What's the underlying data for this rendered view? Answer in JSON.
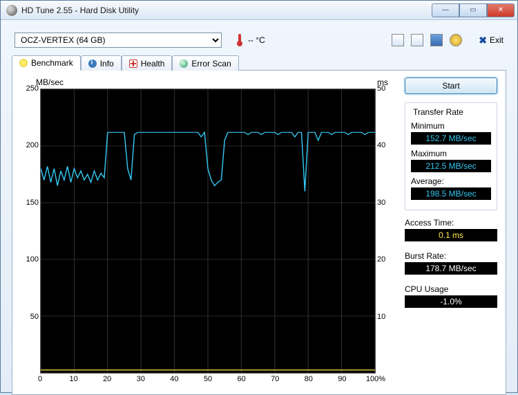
{
  "window": {
    "title": "HD Tune 2.55 - Hard Disk Utility"
  },
  "toolbar": {
    "drive_selected": "OCZ-VERTEX (64 GB)",
    "temperature": "-- °C",
    "exit_label": "Exit"
  },
  "tabs": {
    "benchmark": "Benchmark",
    "info": "Info",
    "health": "Health",
    "error_scan": "Error Scan",
    "active": "benchmark"
  },
  "start_button": "Start",
  "chart": {
    "type": "line",
    "y_left_label": "MB/sec",
    "y_right_label": "ms",
    "y_left": {
      "min": 0,
      "max": 250,
      "ticks": [
        0,
        50,
        100,
        150,
        200,
        250
      ]
    },
    "y_right": {
      "min": 0,
      "max": 50,
      "ticks": [
        0,
        10,
        20,
        30,
        40,
        50
      ]
    },
    "x": {
      "unit": "%",
      "ticks": [
        0,
        10,
        20,
        30,
        40,
        50,
        60,
        70,
        80,
        90,
        100
      ]
    },
    "background_color": "#000000",
    "grid_color": "#353535",
    "transfer_line_color": "#33c7f2",
    "access_line_color": "#ffe94a",
    "transfer_series": [
      [
        0,
        180
      ],
      [
        1,
        170
      ],
      [
        2,
        182
      ],
      [
        3,
        168
      ],
      [
        4,
        180
      ],
      [
        5,
        165
      ],
      [
        6,
        178
      ],
      [
        7,
        170
      ],
      [
        8,
        182
      ],
      [
        9,
        168
      ],
      [
        10,
        180
      ],
      [
        11,
        172
      ],
      [
        12,
        178
      ],
      [
        13,
        170
      ],
      [
        14,
        175
      ],
      [
        15,
        168
      ],
      [
        16,
        178
      ],
      [
        17,
        170
      ],
      [
        18,
        176
      ],
      [
        19,
        172
      ],
      [
        20,
        212
      ],
      [
        21,
        212
      ],
      [
        22,
        212
      ],
      [
        23,
        212
      ],
      [
        24,
        212
      ],
      [
        25,
        212
      ],
      [
        26,
        180
      ],
      [
        27,
        170
      ],
      [
        28,
        210
      ],
      [
        29,
        212
      ],
      [
        30,
        212
      ],
      [
        31,
        212
      ],
      [
        32,
        212
      ],
      [
        33,
        212
      ],
      [
        34,
        212
      ],
      [
        35,
        212
      ],
      [
        36,
        212
      ],
      [
        37,
        212
      ],
      [
        38,
        212
      ],
      [
        39,
        212
      ],
      [
        40,
        212
      ],
      [
        41,
        212
      ],
      [
        42,
        212
      ],
      [
        43,
        212
      ],
      [
        44,
        212
      ],
      [
        45,
        212
      ],
      [
        46,
        212
      ],
      [
        47,
        212
      ],
      [
        48,
        208
      ],
      [
        49,
        212
      ],
      [
        50,
        180
      ],
      [
        51,
        170
      ],
      [
        52,
        165
      ],
      [
        53,
        168
      ],
      [
        54,
        170
      ],
      [
        55,
        205
      ],
      [
        56,
        212
      ],
      [
        57,
        212
      ],
      [
        58,
        212
      ],
      [
        59,
        212
      ],
      [
        60,
        212
      ],
      [
        61,
        212
      ],
      [
        62,
        210
      ],
      [
        63,
        212
      ],
      [
        64,
        212
      ],
      [
        65,
        212
      ],
      [
        66,
        210
      ],
      [
        67,
        212
      ],
      [
        68,
        212
      ],
      [
        69,
        212
      ],
      [
        70,
        212
      ],
      [
        71,
        210
      ],
      [
        72,
        212
      ],
      [
        73,
        212
      ],
      [
        74,
        212
      ],
      [
        75,
        212
      ],
      [
        76,
        208
      ],
      [
        77,
        212
      ],
      [
        78,
        212
      ],
      [
        79,
        160
      ],
      [
        80,
        212
      ],
      [
        81,
        212
      ],
      [
        82,
        212
      ],
      [
        83,
        205
      ],
      [
        84,
        212
      ],
      [
        85,
        212
      ],
      [
        86,
        212
      ],
      [
        87,
        210
      ],
      [
        88,
        212
      ],
      [
        89,
        212
      ],
      [
        90,
        212
      ],
      [
        91,
        212
      ],
      [
        92,
        210
      ],
      [
        93,
        212
      ],
      [
        94,
        212
      ],
      [
        95,
        212
      ],
      [
        96,
        212
      ],
      [
        97,
        210
      ],
      [
        98,
        212
      ],
      [
        99,
        212
      ],
      [
        100,
        212
      ]
    ],
    "access_series_y": 0.5
  },
  "stats": {
    "transfer_rate_title": "Transfer Rate",
    "minimum_label": "Minimum",
    "minimum_value": "152.7 MB/sec",
    "maximum_label": "Maximum",
    "maximum_value": "212.5 MB/sec",
    "average_label": "Average:",
    "average_value": "198.5 MB/sec",
    "access_time_label": "Access Time:",
    "access_time_value": "0.1 ms",
    "burst_rate_label": "Burst Rate:",
    "burst_rate_value": "178.7 MB/sec",
    "cpu_usage_label": "CPU Usage",
    "cpu_usage_value": "-1.0%"
  }
}
